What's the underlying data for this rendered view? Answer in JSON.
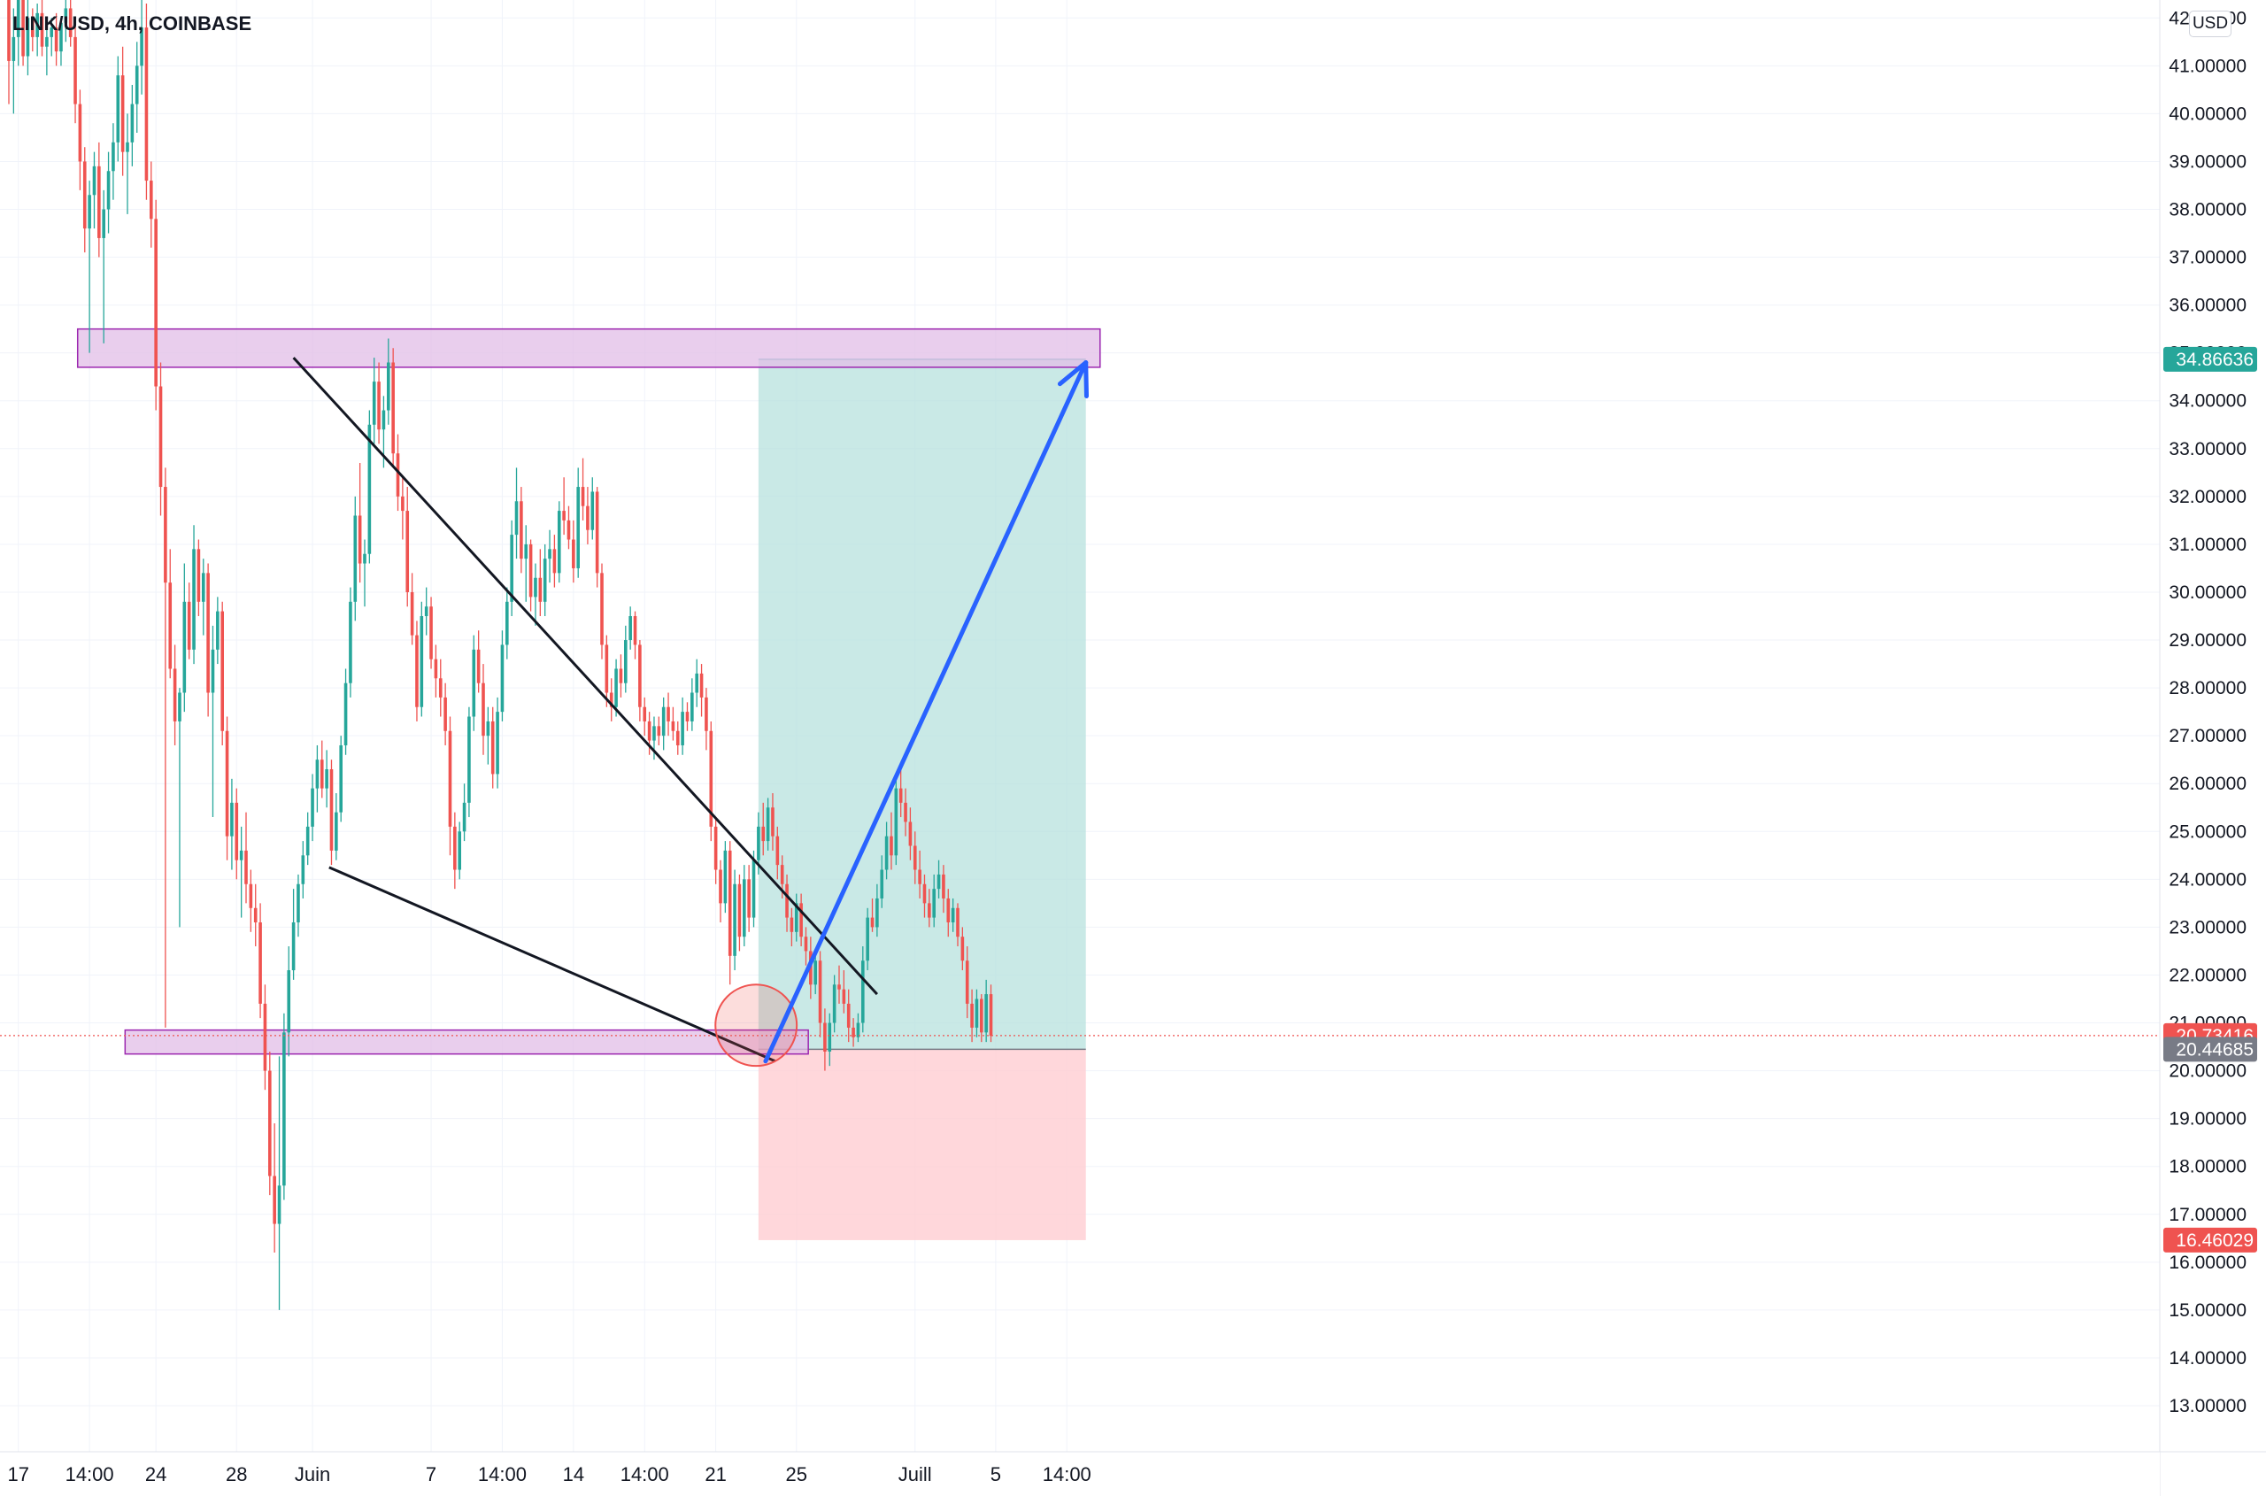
{
  "header": {
    "symbol_title": "LINK/USD, 4h, COINBASE",
    "currency": "USD"
  },
  "colors": {
    "up": "#26a69a",
    "down": "#ef5350",
    "zone_fill": "#e1bee7",
    "zone_border": "#9c27b0",
    "target_fill": "#b2dfdb",
    "stop_fill": "#ffcdd2",
    "arrow": "#2962ff",
    "trendline": "#131722"
  },
  "chart_data": {
    "type": "candlestick",
    "symbol": "LINK/USD",
    "timeframe": "4h",
    "exchange": "COINBASE",
    "y_axis": {
      "position": "right",
      "min": 12.5,
      "max": 42.6,
      "ticks": [
        "13.00000",
        "14.00000",
        "15.00000",
        "16.00000",
        "17.00000",
        "18.00000",
        "19.00000",
        "20.00000",
        "21.00000",
        "22.00000",
        "23.00000",
        "24.00000",
        "25.00000",
        "26.00000",
        "27.00000",
        "28.00000",
        "29.00000",
        "30.00000",
        "31.00000",
        "32.00000",
        "33.00000",
        "34.00000",
        "35.00000",
        "36.00000",
        "37.00000",
        "38.00000",
        "39.00000",
        "40.00000",
        "41.00000",
        "42.00000"
      ]
    },
    "x_axis": {
      "ticks": [
        {
          "label": "14:00",
          "i": -12
        },
        {
          "label": "17",
          "i": 2
        },
        {
          "label": "14:00",
          "i": 17
        },
        {
          "label": "24",
          "i": 31
        },
        {
          "label": "28",
          "i": 48
        },
        {
          "label": "Juin",
          "i": 64
        },
        {
          "label": "7",
          "i": 89
        },
        {
          "label": "14:00",
          "i": 104
        },
        {
          "label": "14",
          "i": 119
        },
        {
          "label": "14:00",
          "i": 134
        },
        {
          "label": "21",
          "i": 149
        },
        {
          "label": "25",
          "i": 166
        },
        {
          "label": "Juill",
          "i": 191
        },
        {
          "label": "5",
          "i": 208
        },
        {
          "label": "14:00",
          "i": 223
        }
      ]
    },
    "price_labels": [
      {
        "value": 34.86636,
        "text": "34.86636",
        "color": "#26a69a"
      },
      {
        "value": 20.73416,
        "text": "20.73416",
        "color": "#ef5350"
      },
      {
        "value": 20.44685,
        "text": "20.44685",
        "color": "#787b86"
      },
      {
        "value": 16.46029,
        "text": "16.46029",
        "color": "#ef5350"
      }
    ],
    "current_price": 20.73416,
    "zones": [
      {
        "name": "resistance",
        "i0": 14.5,
        "i1": 230,
        "top": 35.5,
        "bottom": 34.7
      },
      {
        "name": "support",
        "i0": 24.5,
        "i1": 168.5,
        "top": 20.85,
        "bottom": 20.35
      }
    ],
    "position": {
      "i0": 158,
      "i1": 227,
      "entry": 20.44685,
      "target": 34.86636,
      "stop": 16.46029
    },
    "trendlines": [
      {
        "i0": 60,
        "p0": 34.9,
        "i1": 183,
        "p1": 21.6
      },
      {
        "i0": 67.5,
        "p0": 24.25,
        "i1": 161.5,
        "p1": 20.2
      }
    ],
    "arrow": {
      "i0": 159.5,
      "p0": 20.2,
      "i1": 227,
      "p1": 34.8
    },
    "circle": {
      "i": 157.5,
      "p": 20.95,
      "r": 0.85
    },
    "candles": [
      [
        42.6,
        42.8,
        40.2,
        41.1
      ],
      [
        41.1,
        42.2,
        40.0,
        41.6
      ],
      [
        41.6,
        42.9,
        41.0,
        42.5
      ],
      [
        42.5,
        42.6,
        41.0,
        41.2
      ],
      [
        41.2,
        42.4,
        40.8,
        42.0
      ],
      [
        42.0,
        42.2,
        41.3,
        41.6
      ],
      [
        41.6,
        42.3,
        41.2,
        42.1
      ],
      [
        42.1,
        42.4,
        41.2,
        41.4
      ],
      [
        41.4,
        41.9,
        40.8,
        41.6
      ],
      [
        41.6,
        42.0,
        41.2,
        41.8
      ],
      [
        41.8,
        42.1,
        41.0,
        41.3
      ],
      [
        41.3,
        42.0,
        41.0,
        41.9
      ],
      [
        41.9,
        42.4,
        41.5,
        42.2
      ],
      [
        42.2,
        42.6,
        41.4,
        41.6
      ],
      [
        41.6,
        42.0,
        39.8,
        40.2
      ],
      [
        40.2,
        40.5,
        38.4,
        39.0
      ],
      [
        39.0,
        39.3,
        37.1,
        37.6
      ],
      [
        37.6,
        38.6,
        35.0,
        38.3
      ],
      [
        38.3,
        39.2,
        37.6,
        38.9
      ],
      [
        38.9,
        39.4,
        37.0,
        37.4
      ],
      [
        37.4,
        38.4,
        35.2,
        38.0
      ],
      [
        38.0,
        39.2,
        37.5,
        38.8
      ],
      [
        38.8,
        39.8,
        38.2,
        39.4
      ],
      [
        39.4,
        41.2,
        39.0,
        40.8
      ],
      [
        40.8,
        41.4,
        38.7,
        39.2
      ],
      [
        39.2,
        40.0,
        37.9,
        39.4
      ],
      [
        39.4,
        40.6,
        38.9,
        40.2
      ],
      [
        40.2,
        41.5,
        39.6,
        41.0
      ],
      [
        41.0,
        42.5,
        40.4,
        41.8
      ],
      [
        41.8,
        42.3,
        38.2,
        38.6
      ],
      [
        38.6,
        39.0,
        37.2,
        37.8
      ],
      [
        37.8,
        38.2,
        33.8,
        34.3
      ],
      [
        34.3,
        34.8,
        31.6,
        32.2
      ],
      [
        32.2,
        32.6,
        20.9,
        30.2
      ],
      [
        30.2,
        30.9,
        28.2,
        28.4
      ],
      [
        28.4,
        28.9,
        26.8,
        27.3
      ],
      [
        27.3,
        28.0,
        23.0,
        27.9
      ],
      [
        27.9,
        30.6,
        27.5,
        29.8
      ],
      [
        29.8,
        30.2,
        28.6,
        28.8
      ],
      [
        28.8,
        31.4,
        28.5,
        30.9
      ],
      [
        30.9,
        31.1,
        29.5,
        29.8
      ],
      [
        29.8,
        30.7,
        29.1,
        30.4
      ],
      [
        30.4,
        30.6,
        27.4,
        27.9
      ],
      [
        27.9,
        29.3,
        25.3,
        28.8
      ],
      [
        28.8,
        29.9,
        28.5,
        29.6
      ],
      [
        29.6,
        29.8,
        26.8,
        27.1
      ],
      [
        27.1,
        27.4,
        24.4,
        24.9
      ],
      [
        24.9,
        26.1,
        24.2,
        25.6
      ],
      [
        25.6,
        25.9,
        24.0,
        24.4
      ],
      [
        24.4,
        25.1,
        23.2,
        24.6
      ],
      [
        24.6,
        25.4,
        23.5,
        23.9
      ],
      [
        23.9,
        24.2,
        22.9,
        23.4
      ],
      [
        23.4,
        23.9,
        22.6,
        23.1
      ],
      [
        23.1,
        23.5,
        21.1,
        21.4
      ],
      [
        21.4,
        21.8,
        19.6,
        20.0
      ],
      [
        20.0,
        20.4,
        17.4,
        17.8
      ],
      [
        17.8,
        18.9,
        16.2,
        16.8
      ],
      [
        16.8,
        20.3,
        15.0,
        17.6
      ],
      [
        17.6,
        21.2,
        17.3,
        20.8
      ],
      [
        20.8,
        22.6,
        20.3,
        22.1
      ],
      [
        22.1,
        23.8,
        21.9,
        23.1
      ],
      [
        23.1,
        24.1,
        22.8,
        23.9
      ],
      [
        23.9,
        24.8,
        23.6,
        24.5
      ],
      [
        24.5,
        25.4,
        24.3,
        25.1
      ],
      [
        25.1,
        26.2,
        24.8,
        25.9
      ],
      [
        25.9,
        26.8,
        25.4,
        26.5
      ],
      [
        26.5,
        26.9,
        25.7,
        25.9
      ],
      [
        25.9,
        26.7,
        25.5,
        26.3
      ],
      [
        26.3,
        26.5,
        24.3,
        24.6
      ],
      [
        24.6,
        25.8,
        24.4,
        25.4
      ],
      [
        25.4,
        27.0,
        25.2,
        26.8
      ],
      [
        26.8,
        28.4,
        26.6,
        28.1
      ],
      [
        28.1,
        30.1,
        27.8,
        29.8
      ],
      [
        29.8,
        32.0,
        29.4,
        31.6
      ],
      [
        31.6,
        32.7,
        30.2,
        30.6
      ],
      [
        30.6,
        31.1,
        29.7,
        30.8
      ],
      [
        30.8,
        33.8,
        30.6,
        33.5
      ],
      [
        33.5,
        34.9,
        33.1,
        34.4
      ],
      [
        34.4,
        34.8,
        33.1,
        33.4
      ],
      [
        33.4,
        34.1,
        32.6,
        33.8
      ],
      [
        33.8,
        35.3,
        33.5,
        34.8
      ],
      [
        34.8,
        35.1,
        32.6,
        32.9
      ],
      [
        32.9,
        33.3,
        31.7,
        32.0
      ],
      [
        32.0,
        32.4,
        31.1,
        31.7
      ],
      [
        31.7,
        32.2,
        29.7,
        30.0
      ],
      [
        30.0,
        30.4,
        28.9,
        29.1
      ],
      [
        29.1,
        29.4,
        27.3,
        27.6
      ],
      [
        27.6,
        29.8,
        27.4,
        29.5
      ],
      [
        29.5,
        30.1,
        29.1,
        29.7
      ],
      [
        29.7,
        29.9,
        28.4,
        28.6
      ],
      [
        28.6,
        28.9,
        27.8,
        28.2
      ],
      [
        28.2,
        28.6,
        27.4,
        27.8
      ],
      [
        27.8,
        28.1,
        26.8,
        27.1
      ],
      [
        27.1,
        27.4,
        24.5,
        25.1
      ],
      [
        25.1,
        25.4,
        23.8,
        24.2
      ],
      [
        24.2,
        25.2,
        24.0,
        25.0
      ],
      [
        25.0,
        26.0,
        24.8,
        25.6
      ],
      [
        25.6,
        27.6,
        25.3,
        27.4
      ],
      [
        27.4,
        29.1,
        27.1,
        28.8
      ],
      [
        28.8,
        29.2,
        27.9,
        28.1
      ],
      [
        28.1,
        28.5,
        26.6,
        27.0
      ],
      [
        27.0,
        27.6,
        26.4,
        27.3
      ],
      [
        27.3,
        27.6,
        25.9,
        26.2
      ],
      [
        26.2,
        27.8,
        25.9,
        27.5
      ],
      [
        27.5,
        29.2,
        27.3,
        28.9
      ],
      [
        28.9,
        30.1,
        28.6,
        29.8
      ],
      [
        29.8,
        31.5,
        29.5,
        31.2
      ],
      [
        31.2,
        32.6,
        30.7,
        31.9
      ],
      [
        31.9,
        32.2,
        30.4,
        30.7
      ],
      [
        30.7,
        31.4,
        29.8,
        31.0
      ],
      [
        31.0,
        31.1,
        29.6,
        29.9
      ],
      [
        29.9,
        30.6,
        29.3,
        30.3
      ],
      [
        30.3,
        30.9,
        29.5,
        29.8
      ],
      [
        29.8,
        31.0,
        29.5,
        30.7
      ],
      [
        30.7,
        31.3,
        30.2,
        30.9
      ],
      [
        30.9,
        31.2,
        30.1,
        30.4
      ],
      [
        30.4,
        31.9,
        30.2,
        31.7
      ],
      [
        31.7,
        32.4,
        31.2,
        31.5
      ],
      [
        31.5,
        31.8,
        30.9,
        31.1
      ],
      [
        31.1,
        31.5,
        30.2,
        30.5
      ],
      [
        30.5,
        32.6,
        30.3,
        32.2
      ],
      [
        32.2,
        32.8,
        31.5,
        31.8
      ],
      [
        31.8,
        32.2,
        31.0,
        31.3
      ],
      [
        31.3,
        32.4,
        31.1,
        32.1
      ],
      [
        32.1,
        32.2,
        30.1,
        30.4
      ],
      [
        30.4,
        30.6,
        28.6,
        28.9
      ],
      [
        28.9,
        29.1,
        27.6,
        27.9
      ],
      [
        27.9,
        28.2,
        27.3,
        27.6
      ],
      [
        27.6,
        28.6,
        27.4,
        28.4
      ],
      [
        28.4,
        28.7,
        27.8,
        28.1
      ],
      [
        28.1,
        29.3,
        27.9,
        29.0
      ],
      [
        29.0,
        29.7,
        28.8,
        29.5
      ],
      [
        29.5,
        29.6,
        28.6,
        28.9
      ],
      [
        28.9,
        29.0,
        27.3,
        27.6
      ],
      [
        27.6,
        27.8,
        27.0,
        27.3
      ],
      [
        27.3,
        27.5,
        26.6,
        26.9
      ],
      [
        26.9,
        27.4,
        26.5,
        27.2
      ],
      [
        27.2,
        27.4,
        26.8,
        27.0
      ],
      [
        27.0,
        27.8,
        26.7,
        27.6
      ],
      [
        27.6,
        27.9,
        27.0,
        27.3
      ],
      [
        27.3,
        27.6,
        26.9,
        27.1
      ],
      [
        27.1,
        27.3,
        26.6,
        26.8
      ],
      [
        26.8,
        27.8,
        26.6,
        27.5
      ],
      [
        27.5,
        27.7,
        27.1,
        27.3
      ],
      [
        27.3,
        28.2,
        27.1,
        27.9
      ],
      [
        27.9,
        28.6,
        27.6,
        28.3
      ],
      [
        28.3,
        28.5,
        27.4,
        27.8
      ],
      [
        27.8,
        28.0,
        26.7,
        27.1
      ],
      [
        27.1,
        27.3,
        24.8,
        25.1
      ],
      [
        25.1,
        25.3,
        23.9,
        24.2
      ],
      [
        24.2,
        24.4,
        23.1,
        23.5
      ],
      [
        23.5,
        24.8,
        23.3,
        24.6
      ],
      [
        24.6,
        24.8,
        21.8,
        22.4
      ],
      [
        22.4,
        24.2,
        22.1,
        23.9
      ],
      [
        23.9,
        24.1,
        22.5,
        22.8
      ],
      [
        22.8,
        24.3,
        22.6,
        24.0
      ],
      [
        24.0,
        24.3,
        22.9,
        23.2
      ],
      [
        23.2,
        24.6,
        23.0,
        24.4
      ],
      [
        24.4,
        25.4,
        24.1,
        25.1
      ],
      [
        25.1,
        25.6,
        24.5,
        24.8
      ],
      [
        24.8,
        25.7,
        24.6,
        25.5
      ],
      [
        25.5,
        25.8,
        24.6,
        24.9
      ],
      [
        24.9,
        25.1,
        24.0,
        24.3
      ],
      [
        24.3,
        24.5,
        23.6,
        23.9
      ],
      [
        23.9,
        24.1,
        22.9,
        23.2
      ],
      [
        23.2,
        23.4,
        22.6,
        22.9
      ],
      [
        22.9,
        23.7,
        22.7,
        23.5
      ],
      [
        23.5,
        23.7,
        22.6,
        22.8
      ],
      [
        22.8,
        23.0,
        22.2,
        22.5
      ],
      [
        22.5,
        22.8,
        21.5,
        21.8
      ],
      [
        21.8,
        22.5,
        21.6,
        22.3
      ],
      [
        22.3,
        22.5,
        20.7,
        21.0
      ],
      [
        21.0,
        21.3,
        20.0,
        20.4
      ],
      [
        20.4,
        21.2,
        20.1,
        21.0
      ],
      [
        21.0,
        22.0,
        20.8,
        21.8
      ],
      [
        21.8,
        22.2,
        21.4,
        21.7
      ],
      [
        21.7,
        22.1,
        21.2,
        21.4
      ],
      [
        21.4,
        21.7,
        20.6,
        20.9
      ],
      [
        20.9,
        21.1,
        20.5,
        20.7
      ],
      [
        20.7,
        21.2,
        20.6,
        21.0
      ],
      [
        21.0,
        22.6,
        20.8,
        22.3
      ],
      [
        22.3,
        23.4,
        22.1,
        23.2
      ],
      [
        23.2,
        23.6,
        22.9,
        23.0
      ],
      [
        23.0,
        23.9,
        22.8,
        23.6
      ],
      [
        23.6,
        24.5,
        23.4,
        24.2
      ],
      [
        24.2,
        25.2,
        24.0,
        24.9
      ],
      [
        24.9,
        25.4,
        24.2,
        24.5
      ],
      [
        24.5,
        26.1,
        24.3,
        25.9
      ],
      [
        25.9,
        26.4,
        25.3,
        25.6
      ],
      [
        25.6,
        25.9,
        24.9,
        25.2
      ],
      [
        25.2,
        25.5,
        24.4,
        24.7
      ],
      [
        24.7,
        25.0,
        23.9,
        24.2
      ],
      [
        24.2,
        24.6,
        23.6,
        23.9
      ],
      [
        23.9,
        24.1,
        23.2,
        23.5
      ],
      [
        23.5,
        23.8,
        23.0,
        23.2
      ],
      [
        23.2,
        24.1,
        23.0,
        23.8
      ],
      [
        23.8,
        24.4,
        23.6,
        24.1
      ],
      [
        24.1,
        24.3,
        23.3,
        23.6
      ],
      [
        23.6,
        23.8,
        22.8,
        23.1
      ],
      [
        23.1,
        23.6,
        22.9,
        23.4
      ],
      [
        23.4,
        23.5,
        22.6,
        22.8
      ],
      [
        22.8,
        23.0,
        22.1,
        22.3
      ],
      [
        22.3,
        22.6,
        21.1,
        21.4
      ],
      [
        21.4,
        21.7,
        20.6,
        20.9
      ],
      [
        20.9,
        21.7,
        20.7,
        21.5
      ],
      [
        21.5,
        21.6,
        20.6,
        20.8
      ],
      [
        20.8,
        21.9,
        20.6,
        21.6
      ],
      [
        21.6,
        21.8,
        20.6,
        20.73
      ]
    ]
  }
}
